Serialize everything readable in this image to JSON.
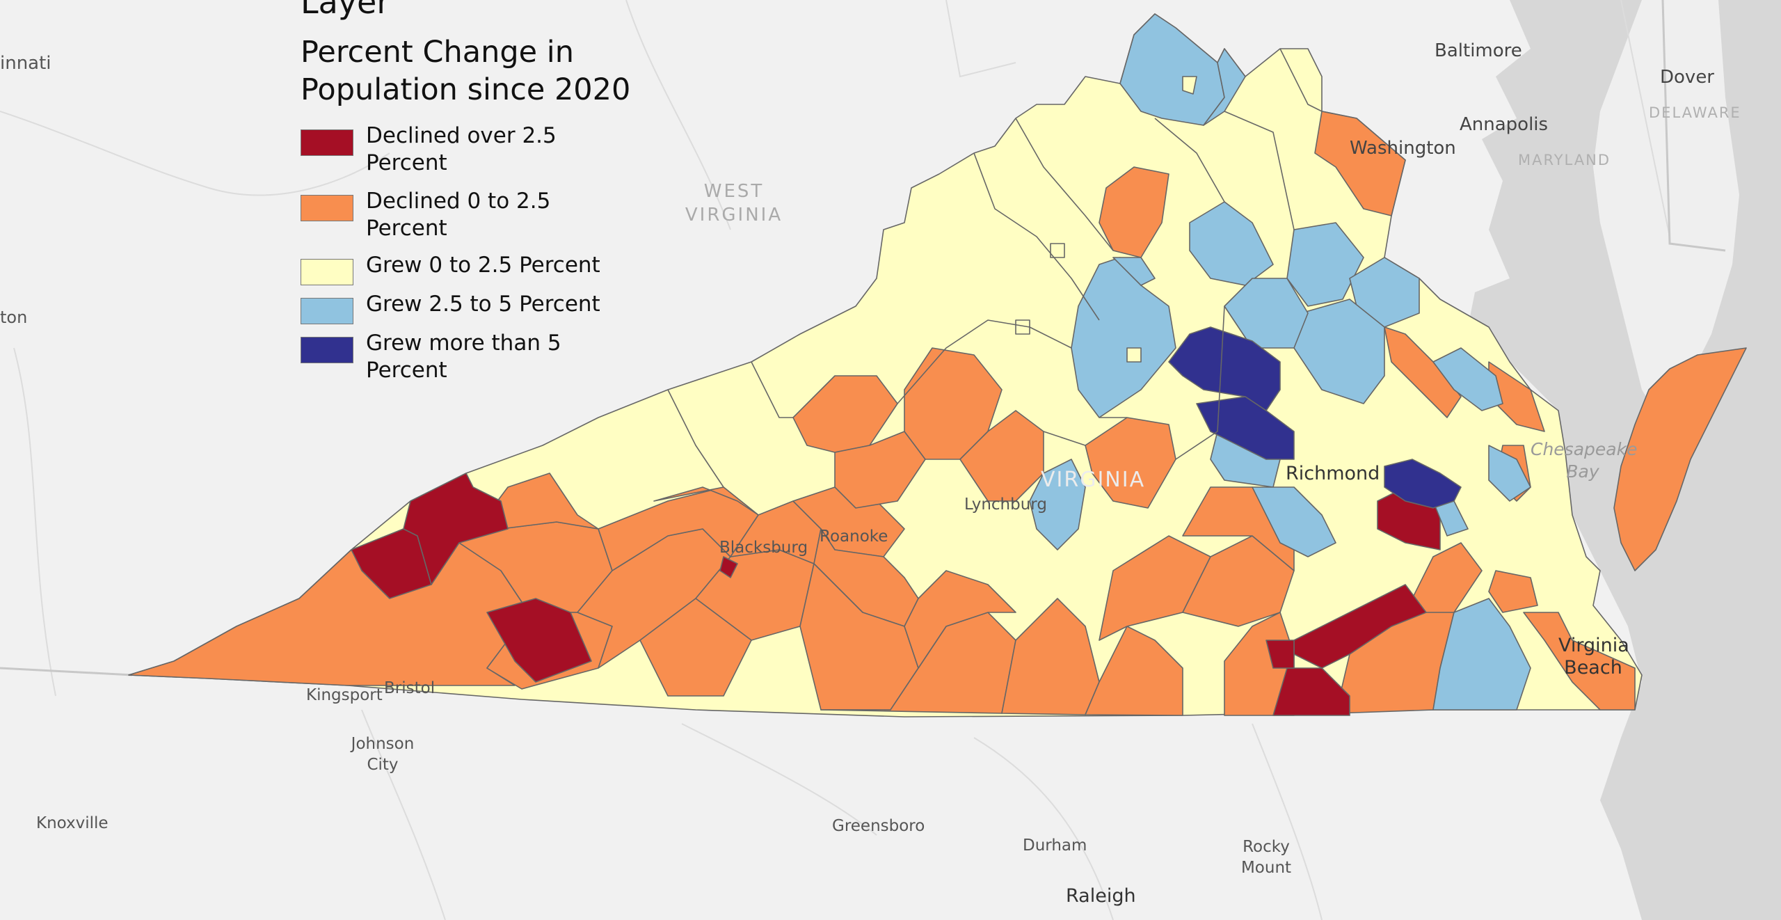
{
  "legend": {
    "layer": "Layer",
    "title": "Percent Change in Population since 2020",
    "items": [
      {
        "label": "Declined over 2.5 Percent",
        "color": "#a50f25"
      },
      {
        "label": "Declined 0 to 2.5 Percent",
        "color": "#f88e4f"
      },
      {
        "label": "Grew 0 to 2.5 Percent",
        "color": "#fffec3"
      },
      {
        "label": "Grew 2.5 to 5 Percent",
        "color": "#90c3e0"
      },
      {
        "label": "Grew more than 5 Percent",
        "color": "#31318f"
      }
    ]
  },
  "labels": {
    "cincinnati": "innati",
    "west_virginia": "WEST VIRGINIA",
    "baltimore": "Baltimore",
    "dover": "Dover",
    "delaware": "DELAWARE",
    "annapolis": "Annapolis",
    "maryland": "MARYLAND",
    "washington": "Washington",
    "lexington": "ton",
    "chesapeake_bay": "Chesapeake Bay",
    "richmond": "Richmond",
    "virginia": "VIRGINIA",
    "lynchburg": "Lynchburg",
    "roanoke": "Roanoke",
    "blacksburg": "Blacksburg",
    "virginia_beach": "Virginia Beach",
    "kingsport": "Kingsport",
    "bristol": "Bristol",
    "johnson_city": "Johnson City",
    "knoxville": "Knoxville",
    "greensboro": "Greensboro",
    "durham": "Durham",
    "rocky_mount": "Rocky Mount",
    "raleigh": "Raleigh"
  }
}
